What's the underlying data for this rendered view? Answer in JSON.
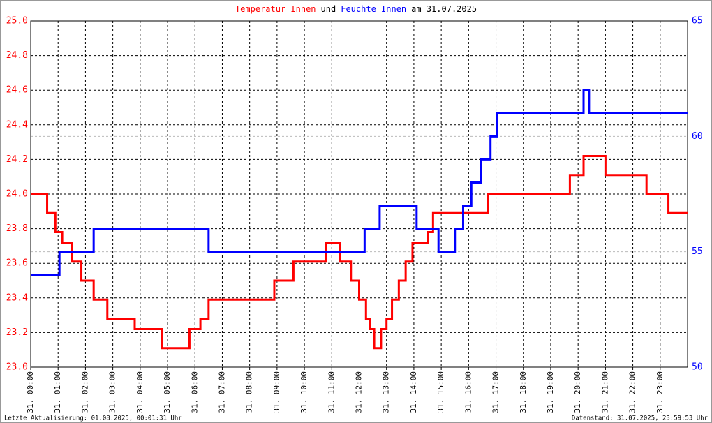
{
  "chart_data": {
    "type": "line",
    "title_parts": [
      {
        "text": "Temperatur Innen",
        "color": "#ff0000"
      },
      {
        "text": "und",
        "color": "#000000"
      },
      {
        "text": "Feuchte Innen",
        "color": "#0000ff"
      },
      {
        "text": "am 31.07.2025",
        "color": "#000000"
      }
    ],
    "footer_left": "Letzte Aktualisierung: 01.08.2025, 00:01:31 Uhr",
    "footer_right": "Datenstand: 31.07.2025, 23:59:53 Uhr",
    "xlim": [
      0,
      24
    ],
    "xticks": [
      {
        "value": 0,
        "label": "31. 00:00"
      },
      {
        "value": 1,
        "label": "31. 01:00"
      },
      {
        "value": 2,
        "label": "31. 02:00"
      },
      {
        "value": 3,
        "label": "31. 03:00"
      },
      {
        "value": 4,
        "label": "31. 04:00"
      },
      {
        "value": 5,
        "label": "31. 05:00"
      },
      {
        "value": 6,
        "label": "31. 06:00"
      },
      {
        "value": 7,
        "label": "31. 07:00"
      },
      {
        "value": 8,
        "label": "31. 08:00"
      },
      {
        "value": 9,
        "label": "31. 09:00"
      },
      {
        "value": 10,
        "label": "31. 10:00"
      },
      {
        "value": 11,
        "label": "31. 11:00"
      },
      {
        "value": 12,
        "label": "31. 12:00"
      },
      {
        "value": 13,
        "label": "31. 13:00"
      },
      {
        "value": 14,
        "label": "31. 14:00"
      },
      {
        "value": 15,
        "label": "31. 15:00"
      },
      {
        "value": 16,
        "label": "31. 16:00"
      },
      {
        "value": 17,
        "label": "31. 17:00"
      },
      {
        "value": 18,
        "label": "31. 18:00"
      },
      {
        "value": 19,
        "label": "31. 19:00"
      },
      {
        "value": 20,
        "label": "31. 20:00"
      },
      {
        "value": 21,
        "label": "31. 21:00"
      },
      {
        "value": 22,
        "label": "31. 22:00"
      },
      {
        "value": 23,
        "label": "31. 23:00"
      }
    ],
    "ylim": [
      23.0,
      25.0
    ],
    "yticks": [
      {
        "value": 23,
        "label": "23.0"
      },
      23.2,
      23.4,
      23.6,
      23.8,
      {
        "value": 24,
        "label": "24.0"
      },
      24.2,
      24.4,
      24.6,
      24.8,
      {
        "value": 25,
        "label": "25.0"
      }
    ],
    "y2lim": [
      50,
      65
    ],
    "y2ticks": [
      50,
      55,
      60,
      65
    ],
    "grid": true,
    "series": [
      {
        "name": "Temperatur Innen",
        "color": "#ff0000",
        "x": [
          0,
          0.6,
          0.6,
          0.9,
          0.9,
          1.15,
          1.15,
          1.5,
          1.5,
          1.85,
          1.85,
          2.3,
          2.3,
          2.8,
          2.8,
          3.8,
          3.8,
          4.8,
          4.8,
          5.8,
          5.8,
          6.2,
          6.2,
          6.5,
          6.5,
          8.9,
          8.9,
          9.6,
          9.6,
          10.8,
          10.8,
          11.3,
          11.3,
          11.7,
          11.7,
          12.0,
          12.0,
          12.25,
          12.25,
          12.4,
          12.4,
          12.55,
          12.55,
          12.8,
          12.8,
          13.0,
          13.0,
          13.2,
          13.2,
          13.45,
          13.45,
          13.7,
          13.7,
          13.95,
          13.95,
          14.5,
          14.5,
          14.7,
          14.7,
          16.7,
          16.7,
          19.7,
          19.7,
          20.2,
          20.2,
          21.0,
          21.0,
          22.5,
          22.5,
          23.3,
          23.3,
          24
        ],
        "values": [
          24.0,
          24.0,
          23.89,
          23.89,
          23.78,
          23.78,
          23.72,
          23.72,
          23.61,
          23.61,
          23.5,
          23.5,
          23.39,
          23.39,
          23.28,
          23.28,
          23.22,
          23.22,
          23.11,
          23.11,
          23.22,
          23.22,
          23.28,
          23.28,
          23.39,
          23.39,
          23.5,
          23.5,
          23.61,
          23.61,
          23.72,
          23.72,
          23.61,
          23.61,
          23.5,
          23.5,
          23.39,
          23.39,
          23.28,
          23.28,
          23.22,
          23.22,
          23.11,
          23.11,
          23.22,
          23.22,
          23.28,
          23.28,
          23.39,
          23.39,
          23.5,
          23.5,
          23.61,
          23.61,
          23.72,
          23.72,
          23.78,
          23.78,
          23.89,
          23.89,
          24.0,
          24.0,
          24.11,
          24.11,
          24.22,
          24.22,
          24.11,
          24.11,
          24.0,
          24.0,
          23.89,
          23.89
        ]
      },
      {
        "name": "Feuchte Innen",
        "color": "#0000ff",
        "axis": "y2",
        "x": [
          0,
          1.05,
          1.05,
          2.3,
          2.3,
          6.5,
          6.5,
          12.2,
          12.2,
          12.75,
          12.75,
          14.1,
          14.1,
          14.9,
          14.9,
          15.5,
          15.5,
          15.8,
          15.8,
          16.1,
          16.1,
          16.45,
          16.45,
          16.8,
          16.8,
          17.05,
          17.05,
          20.2,
          20.2,
          20.4,
          20.4,
          24
        ],
        "values": [
          54,
          54,
          55,
          55,
          56,
          56,
          55,
          55,
          56,
          56,
          57,
          57,
          56,
          56,
          55,
          55,
          56,
          56,
          57,
          57,
          58,
          58,
          59,
          59,
          60,
          60,
          61,
          61,
          62,
          62,
          61,
          61
        ]
      }
    ]
  }
}
